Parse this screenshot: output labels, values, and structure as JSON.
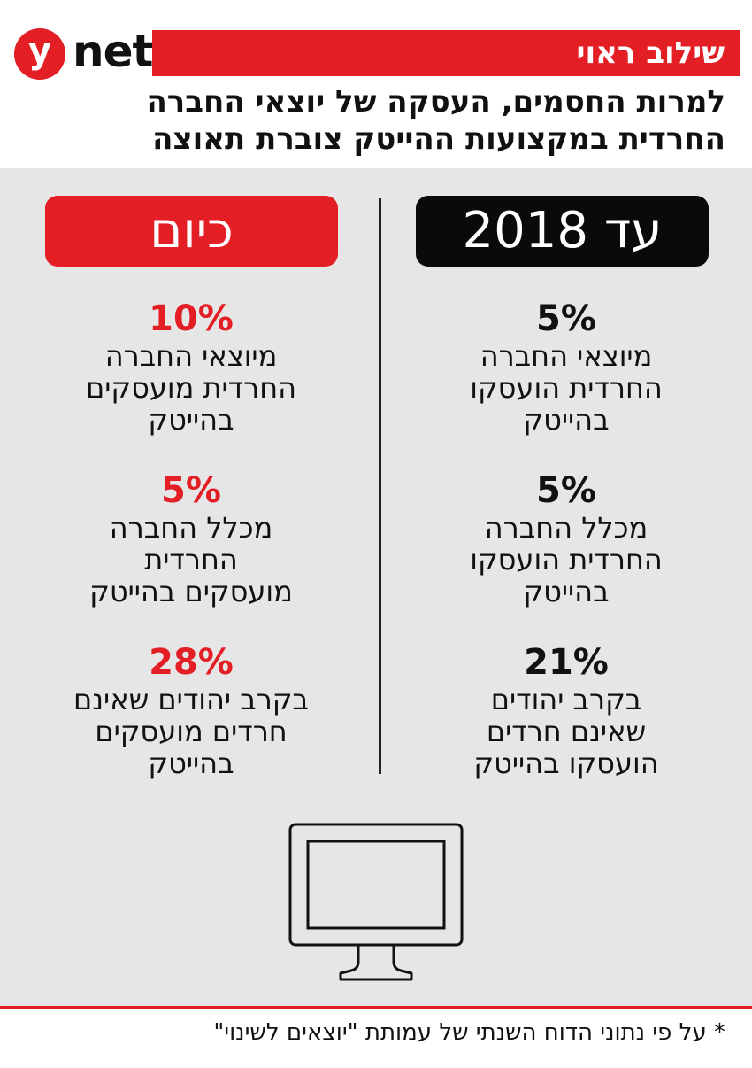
{
  "logo": {
    "mark": "y",
    "text": "net"
  },
  "header": {
    "label": "שילוב ראוי",
    "headline_line1": "למרות החסמים, העסקה של יוצאי החברה",
    "headline_line2": "החרדית במקצועות ההייטק צוברת תאוצה"
  },
  "columns": {
    "today": {
      "title": "כיום",
      "stats": [
        {
          "value": "10%",
          "lines": [
            "מיוצאי החברה",
            "החרדית מועסקים",
            "בהייטק"
          ]
        },
        {
          "value": "5%",
          "lines": [
            "מכלל החברה",
            "החרדית",
            "מועסקים בהייטק"
          ]
        },
        {
          "value": "28%",
          "lines": [
            "בקרב יהודים שאינם",
            "חרדים מועסקים",
            "בהייטק"
          ]
        }
      ]
    },
    "until_2018": {
      "title": "עד 2018",
      "stats": [
        {
          "value": "5%",
          "lines": [
            "מיוצאי החברה",
            "החרדית הועסקו",
            "בהייטק"
          ]
        },
        {
          "value": "5%",
          "lines": [
            "מכלל החברה",
            "החרדית הועסקו",
            "בהייטק"
          ]
        },
        {
          "value": "21%",
          "lines": [
            "בקרב יהודים",
            "שאינם חרדים",
            "הועסקו בהייטק"
          ]
        }
      ]
    }
  },
  "footnote": "* על פי נתוני הדוח השנתי של עמותת \"יוצאים לשינוי\"",
  "colors": {
    "accent": "#e31e24",
    "panel": "#e6e6e6",
    "dark": "#0a0a0a"
  },
  "icons": {
    "monitor": "monitor-icon"
  }
}
